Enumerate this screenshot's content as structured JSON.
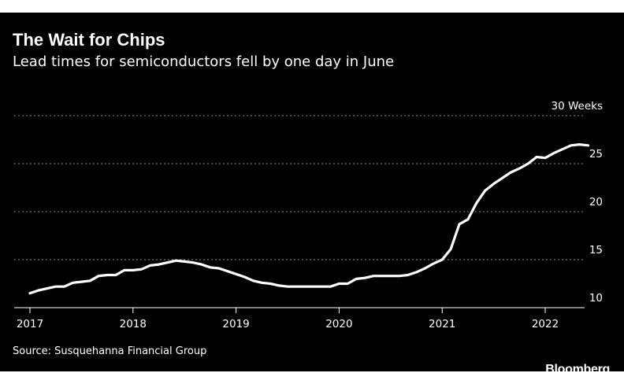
{
  "chart_data": {
    "type": "line",
    "title": "The Wait for Chips",
    "subtitle": "Lead times for semiconductors fell by one day in June",
    "y_unit_label": "30 Weeks",
    "ylim": [
      10,
      30
    ],
    "y_ticks": [
      10,
      15,
      20,
      25,
      30
    ],
    "y_tick_labels": [
      "10",
      "15",
      "20",
      "25",
      "30 Weeks"
    ],
    "x_ticks": [
      "2017",
      "2018",
      "2019",
      "2020",
      "2021",
      "2022"
    ],
    "grid": true,
    "line_color": "#ffffff",
    "background": "#000000",
    "series": [
      {
        "x": [
          "2017-01",
          "2017-02",
          "2017-03",
          "2017-04",
          "2017-05",
          "2017-06",
          "2017-07",
          "2017-08",
          "2017-09",
          "2017-10",
          "2017-11",
          "2017-12",
          "2018-01",
          "2018-02",
          "2018-03",
          "2018-04",
          "2018-05",
          "2018-06",
          "2018-07",
          "2018-08",
          "2018-09",
          "2018-10",
          "2018-11",
          "2018-12",
          "2019-01",
          "2019-02",
          "2019-03",
          "2019-04",
          "2019-05",
          "2019-06",
          "2019-07",
          "2019-08",
          "2019-09",
          "2019-10",
          "2019-11",
          "2019-12",
          "2020-01",
          "2020-02",
          "2020-03",
          "2020-04",
          "2020-05",
          "2020-06",
          "2020-07",
          "2020-08",
          "2020-09",
          "2020-10",
          "2020-11",
          "2020-12",
          "2021-01",
          "2021-02",
          "2021-03",
          "2021-04",
          "2021-05",
          "2021-06",
          "2021-07",
          "2021-08",
          "2021-09",
          "2021-10",
          "2021-11",
          "2021-12",
          "2022-01",
          "2022-02",
          "2022-03",
          "2022-04",
          "2022-05",
          "2022-06"
        ],
        "values": [
          11.5,
          11.8,
          12.0,
          12.2,
          12.2,
          12.6,
          12.7,
          12.8,
          13.3,
          13.4,
          13.4,
          13.9,
          13.9,
          14.0,
          14.4,
          14.5,
          14.7,
          14.9,
          14.8,
          14.7,
          14.5,
          14.2,
          14.1,
          13.8,
          13.5,
          13.2,
          12.8,
          12.6,
          12.5,
          12.3,
          12.2,
          12.2,
          12.2,
          12.2,
          12.2,
          12.2,
          12.5,
          12.5,
          13.0,
          13.1,
          13.3,
          13.3,
          13.3,
          13.3,
          13.4,
          13.7,
          14.1,
          14.6,
          15.0,
          16.1,
          18.7,
          19.2,
          20.9,
          22.2,
          22.9,
          23.5,
          24.1,
          24.5,
          25.0,
          25.7,
          25.6,
          26.1,
          26.5,
          26.9,
          27.0,
          26.9
        ]
      }
    ]
  },
  "source": "Source: Susquehanna Financial Group",
  "brand": "Bloomberg"
}
